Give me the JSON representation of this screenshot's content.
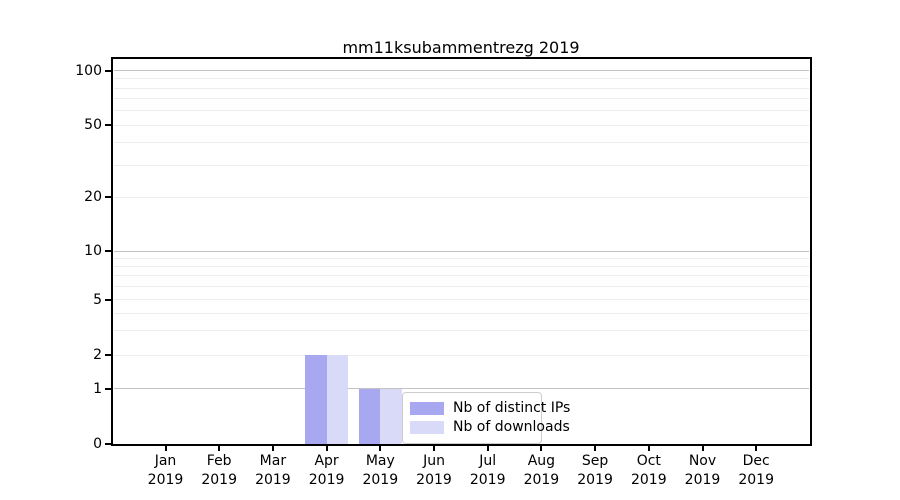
{
  "chart_data": {
    "type": "bar",
    "title": "mm11ksubammentrezg 2019",
    "categories": [
      "Jan",
      "Feb",
      "Mar",
      "Apr",
      "May",
      "Jun",
      "Jul",
      "Aug",
      "Sep",
      "Oct",
      "Nov",
      "Dec"
    ],
    "category_sublabel": "2019",
    "series": [
      {
        "name": "Nb of distinct IPs",
        "color": "#a8a8f0",
        "values": [
          0,
          0,
          0,
          2,
          1,
          0,
          0,
          0,
          0,
          0,
          0,
          0
        ]
      },
      {
        "name": "Nb of downloads",
        "color": "#d9d9f8",
        "values": [
          0,
          0,
          0,
          2,
          1,
          0,
          0,
          0,
          0,
          0,
          0,
          0
        ]
      }
    ],
    "yscale": "symlog",
    "ylim": [
      0,
      100
    ],
    "ytick_labels": [
      "0",
      "1",
      "2",
      "5",
      "10",
      "20",
      "50",
      "100"
    ],
    "grid": true,
    "legend_position": "inside-bottom-center",
    "axis_color": "#000000",
    "major_grid_color": "#c3c3c3",
    "minor_grid_color": "#ececec"
  }
}
